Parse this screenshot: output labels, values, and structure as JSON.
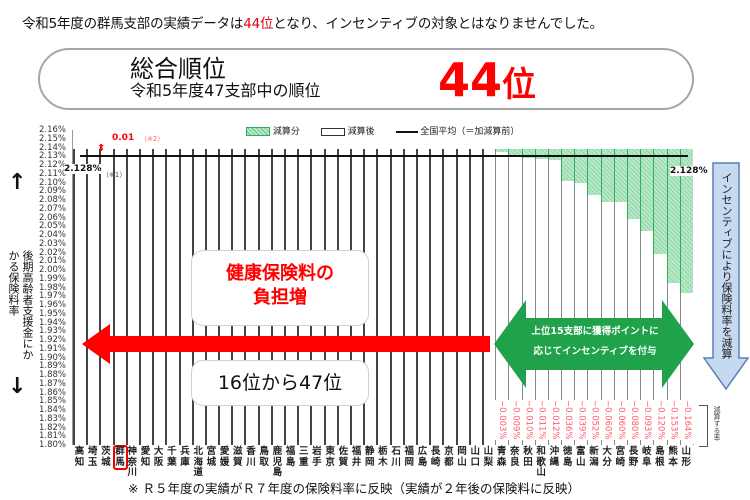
{
  "headline": {
    "prefix": "令和5年度の群馬支部の実績データは",
    "highlight": "44位",
    "suffix": "となり、インセンティブの対象とはなりませんでした。"
  },
  "rank_box": {
    "title": "総合順位",
    "subtitle": "令和5年度47支部中の順位",
    "value": "44",
    "unit": "位"
  },
  "legend": {
    "reduction": "減算分",
    "after": "減算後",
    "average": "全国平均（＝加減算前）"
  },
  "annotations": {
    "avg_left": "2.128%",
    "avg_right": "2.128%",
    "note1": "（※1）",
    "diff": "0.01",
    "note2": "（※2）",
    "reduction_rate_label": "減算する率"
  },
  "y_axis": {
    "title_col1": "後期高齢者支援金に",
    "title_col2": "かかる保険料率",
    "up_arrow": "↑",
    "down_arrow": "↓"
  },
  "callouts": {
    "burden_line1": "健康保険料の",
    "burden_line2": "負担増",
    "range": "16位から47位",
    "incentive_line1": "上位15支部に獲得ポイントに",
    "incentive_line2": "応じてインセンティブを付与",
    "blue_arrow": "インセンティブにより保険料率を減算"
  },
  "footnote": "※ Ｒ５年度の実績がＲ７年度の保険料率に反映（実績が２年後の保険料に反映）",
  "colors": {
    "accent_red": "#f00000",
    "green": "#1fa24a",
    "blue_arrow": "#c5d9f1",
    "hatch": "#9fdcb4"
  },
  "chart_data": {
    "type": "bar",
    "title": "後期高齢者支援金にかかる保険料率（支部別）",
    "ylabel": "後期高齢者支援金にかかる保険料率",
    "ylim": [
      1.8,
      2.16
    ],
    "y_ticks": [
      "2.16%",
      "2.15%",
      "2.14%",
      "2.13%",
      "2.12%",
      "2.11%",
      "2.10%",
      "2.09%",
      "2.08%",
      "2.07%",
      "2.06%",
      "2.05%",
      "2.04%",
      "2.03%",
      "2.02%",
      "2.01%",
      "2.00%",
      "1.99%",
      "1.98%",
      "1.97%",
      "1.96%",
      "1.95%",
      "1.94%",
      "1.93%",
      "1.92%",
      "1.91%",
      "1.90%",
      "1.89%",
      "1.88%",
      "1.87%",
      "1.86%",
      "1.85%",
      "1.84%",
      "1.83%",
      "1.82%",
      "1.81%",
      "1.80%"
    ],
    "national_average": 2.128,
    "addition_for_non_incentive": 0.01,
    "categories": [
      "高知",
      "埼玉",
      "茨城",
      "群馬",
      "神奈川",
      "愛知",
      "大阪",
      "千葉",
      "兵庫",
      "北海道",
      "宮城",
      "愛媛",
      "滋賀",
      "香川",
      "鳥取",
      "鹿児島",
      "福島",
      "三重",
      "岩手",
      "東京",
      "佐賀",
      "福井",
      "静岡",
      "栃木",
      "石川",
      "福岡",
      "広島",
      "長崎",
      "京都",
      "岡山",
      "山口",
      "山梨",
      "青森",
      "奈良",
      "秋田",
      "和歌山",
      "沖縄",
      "徳島",
      "富山",
      "新潟",
      "大分",
      "宮崎",
      "長野",
      "岐阜",
      "島根",
      "熊本",
      "山形"
    ],
    "highlight_category": "群馬",
    "series": [
      {
        "name": "減算後",
        "values": [
          2.138,
          2.138,
          2.138,
          2.138,
          2.138,
          2.138,
          2.138,
          2.138,
          2.138,
          2.138,
          2.138,
          2.138,
          2.138,
          2.138,
          2.138,
          2.138,
          2.138,
          2.138,
          2.138,
          2.138,
          2.138,
          2.138,
          2.138,
          2.138,
          2.138,
          2.138,
          2.138,
          2.138,
          2.138,
          2.138,
          2.138,
          2.138,
          2.135,
          2.129,
          2.128,
          2.127,
          2.126,
          2.102,
          2.099,
          2.086,
          2.078,
          2.078,
          2.058,
          2.045,
          2.018,
          1.985,
          1.974
        ]
      },
      {
        "name": "減算分",
        "values": [
          0,
          0,
          0,
          0,
          0,
          0,
          0,
          0,
          0,
          0,
          0,
          0,
          0,
          0,
          0,
          0,
          0,
          0,
          0,
          0,
          0,
          0,
          0,
          0,
          0,
          0,
          0,
          0,
          0,
          0,
          0,
          0,
          0.003,
          0.009,
          0.01,
          0.011,
          0.012,
          0.036,
          0.039,
          0.052,
          0.06,
          0.06,
          0.08,
          0.093,
          0.12,
          0.153,
          0.164
        ]
      }
    ],
    "reduction_labels": [
      "−0.003%",
      "−0.009%",
      "−0.010%",
      "−0.011%",
      "−0.012%",
      "−0.036%",
      "−0.039%",
      "−0.052%",
      "−0.060%",
      "−0.060%",
      "−0.080%",
      "−0.093%",
      "−0.120%",
      "−0.153%",
      "−0.164%"
    ],
    "legend_position": "top",
    "grid": false
  }
}
